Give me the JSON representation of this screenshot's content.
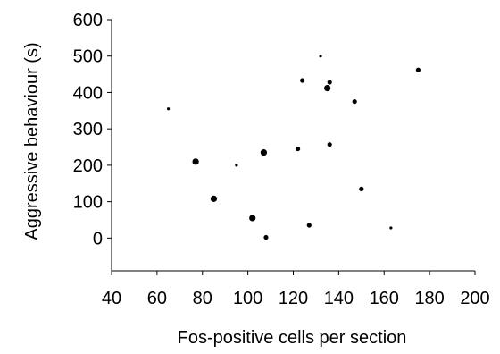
{
  "chart_data": {
    "type": "scatter",
    "title": "",
    "xlabel": "Fos-positive cells per section",
    "ylabel": "Aggressive behaviour (s)",
    "xlim": [
      40,
      200
    ],
    "ylim": [
      -90,
      600
    ],
    "xticks": [
      40,
      60,
      80,
      100,
      120,
      140,
      160,
      180,
      200
    ],
    "yticks": [
      0,
      100,
      200,
      300,
      400,
      500,
      600
    ],
    "grid": false,
    "legend": "none",
    "marker_color": "#000000",
    "points": [
      {
        "x": 65,
        "y": 355,
        "size": "small"
      },
      {
        "x": 77,
        "y": 210,
        "size": "large"
      },
      {
        "x": 85,
        "y": 108,
        "size": "large"
      },
      {
        "x": 95,
        "y": 200,
        "size": "small"
      },
      {
        "x": 102,
        "y": 55,
        "size": "large"
      },
      {
        "x": 107,
        "y": 235,
        "size": "large"
      },
      {
        "x": 108,
        "y": 2,
        "size": "medium"
      },
      {
        "x": 122,
        "y": 245,
        "size": "medium"
      },
      {
        "x": 124,
        "y": 433,
        "size": "medium"
      },
      {
        "x": 127,
        "y": 35,
        "size": "medium"
      },
      {
        "x": 132,
        "y": 500,
        "size": "small"
      },
      {
        "x": 135,
        "y": 412,
        "size": "large"
      },
      {
        "x": 136,
        "y": 428,
        "size": "medium"
      },
      {
        "x": 136,
        "y": 257,
        "size": "medium"
      },
      {
        "x": 147,
        "y": 375,
        "size": "medium"
      },
      {
        "x": 150,
        "y": 135,
        "size": "medium"
      },
      {
        "x": 163,
        "y": 28,
        "size": "small"
      },
      {
        "x": 175,
        "y": 462,
        "size": "medium"
      }
    ]
  }
}
